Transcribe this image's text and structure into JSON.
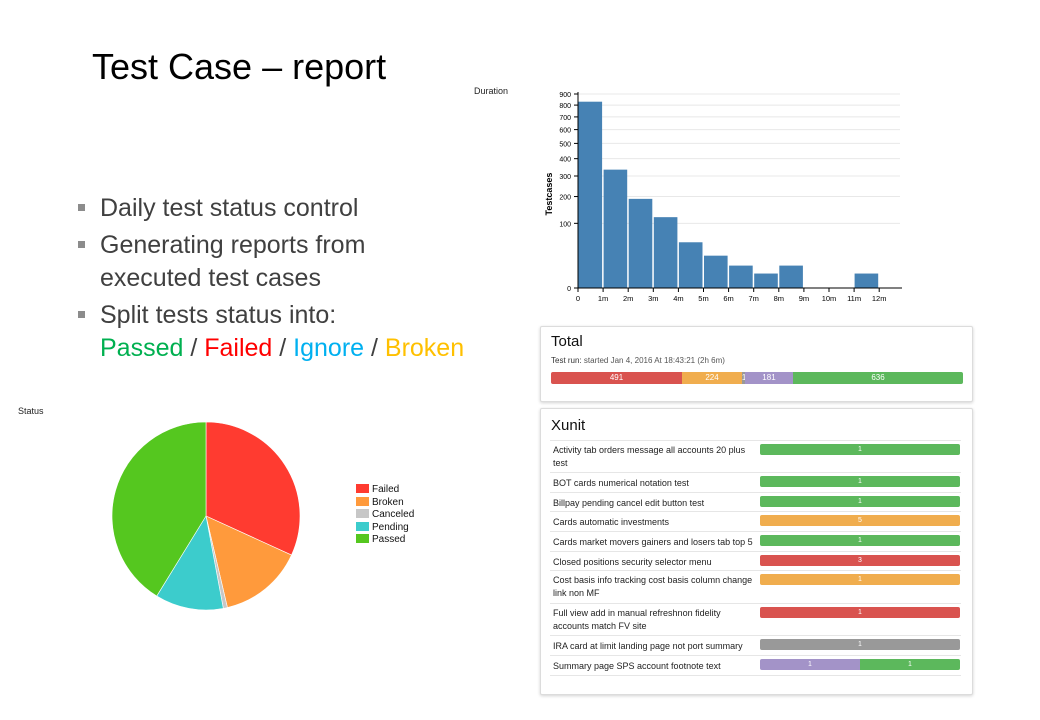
{
  "slide": {
    "title": "Test Case – report",
    "bullets": [
      "Daily test status control",
      "Generating reports from executed test cases",
      "Split tests status into:"
    ],
    "statuses": [
      {
        "label": "Passed",
        "color": "#00b050"
      },
      {
        "label": "Failed",
        "color": "#ff0000"
      },
      {
        "label": "Ignore",
        "color": "#00b0f0"
      },
      {
        "label": "Broken",
        "color": "#ffc000"
      }
    ],
    "separator": " / "
  },
  "duration_chart": {
    "label": "Duration",
    "chart_data": {
      "type": "bar",
      "title": "",
      "ylabel": "Testcases",
      "xlabel": "",
      "x_ticks": [
        "0",
        "1m",
        "2m",
        "3m",
        "4m",
        "5m",
        "6m",
        "7m",
        "8m",
        "9m",
        "10m",
        "11m",
        "12m"
      ],
      "y_ticks": [
        0,
        100,
        200,
        300,
        400,
        500,
        600,
        700,
        800,
        900
      ],
      "y_scale": "sqrt",
      "ylim": [
        0,
        900
      ],
      "bin_start_minutes": [
        0,
        1,
        2,
        3,
        4,
        5,
        6,
        7,
        8,
        9,
        10,
        11
      ],
      "values": [
        830,
        335,
        190,
        120,
        50,
        25,
        12,
        5,
        12,
        0,
        0,
        5
      ],
      "color": "#4682b4"
    }
  },
  "status_chart": {
    "label": "Status",
    "chart_data": {
      "type": "pie",
      "labels": [
        "Failed",
        "Broken",
        "Canceled",
        "Pending",
        "Passed"
      ],
      "values": [
        491,
        224,
        11,
        181,
        636
      ],
      "colors": [
        "#ff3b30",
        "#ff9a3c",
        "#c7c7c7",
        "#3ccccc",
        "#55c71f"
      ],
      "legend": "right"
    }
  },
  "total_panel": {
    "title": "Total",
    "run_label": "Test run:",
    "run_info": "started Jan 4, 2016 At 18:43:21 (2h 6m)",
    "segments": [
      {
        "value": "491",
        "color": "#d9534f"
      },
      {
        "value": "224",
        "color": "#f0ad4e"
      },
      {
        "value": "11",
        "color": "#999999"
      },
      {
        "value": "181",
        "color": "#a393c8"
      },
      {
        "value": "636",
        "color": "#5cb85c"
      }
    ]
  },
  "xunit_panel": {
    "title": "Xunit",
    "rows": [
      {
        "name": "Activity tab orders message all accounts 20 plus test",
        "segments": [
          {
            "value": "1",
            "color": "#5cb85c"
          }
        ]
      },
      {
        "name": "BOT cards numerical notation test",
        "segments": [
          {
            "value": "1",
            "color": "#5cb85c"
          }
        ]
      },
      {
        "name": "Billpay pending cancel edit button test",
        "segments": [
          {
            "value": "1",
            "color": "#5cb85c"
          }
        ]
      },
      {
        "name": "Cards automatic investments",
        "segments": [
          {
            "value": "5",
            "color": "#f0ad4e"
          }
        ]
      },
      {
        "name": "Cards market movers gainers and losers tab top 5",
        "segments": [
          {
            "value": "1",
            "color": "#5cb85c"
          }
        ]
      },
      {
        "name": "Closed positions security selector menu",
        "segments": [
          {
            "value": "3",
            "color": "#d9534f"
          }
        ]
      },
      {
        "name": "Cost basis info tracking cost basis column change link non MF",
        "segments": [
          {
            "value": "1",
            "color": "#f0ad4e"
          }
        ]
      },
      {
        "name": "Full view add in manual refreshnon fidelity accounts match FV site",
        "segments": [
          {
            "value": "1",
            "color": "#d9534f"
          }
        ]
      },
      {
        "name": "IRA card at limit landing page not port summary",
        "segments": [
          {
            "value": "1",
            "color": "#999999"
          }
        ]
      },
      {
        "name": "Summary page SPS account footnote text",
        "segments": [
          {
            "value": "1",
            "color": "#a393c8"
          },
          {
            "value": "1",
            "color": "#5cb85c"
          }
        ]
      }
    ]
  }
}
